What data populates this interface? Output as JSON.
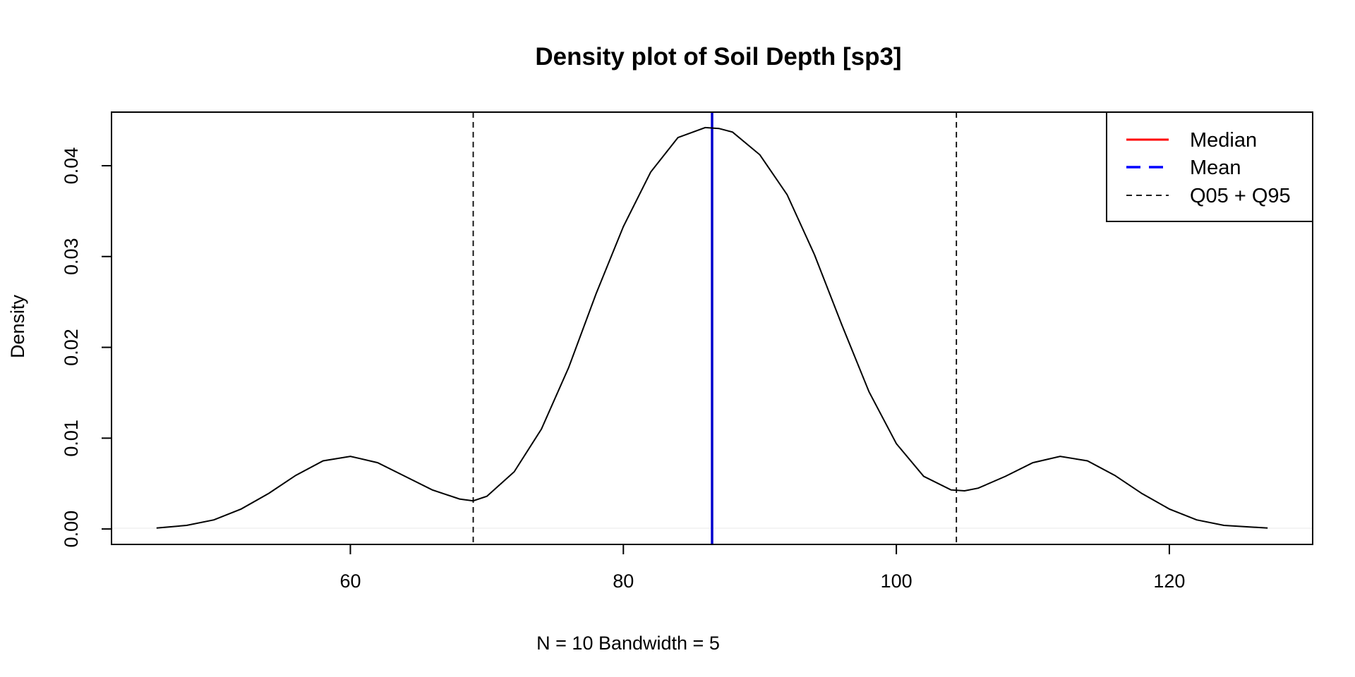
{
  "chart_data": {
    "type": "line",
    "title": "Density plot of Soil Depth [sp3]",
    "xlabel": "N = 10   Bandwidth = 5",
    "ylabel": "Density",
    "xlim": [
      42.5,
      130.5
    ],
    "ylim": [
      -0.0017,
      0.0459
    ],
    "x_ticks": [
      60,
      80,
      100,
      120
    ],
    "x_tick_labels": [
      "60",
      "80",
      "100",
      "120"
    ],
    "y_ticks": [
      0.0,
      0.01,
      0.02,
      0.03,
      0.04
    ],
    "y_tick_labels": [
      "0.00",
      "0.01",
      "0.02",
      "0.03",
      "0.04"
    ],
    "grid": false,
    "series": [
      {
        "x": [
          45.8,
          48,
          50,
          52,
          54,
          56,
          58,
          60,
          62,
          64,
          66,
          68,
          69,
          70,
          72,
          74,
          76,
          78,
          80,
          82,
          84,
          86,
          87,
          88,
          90,
          92,
          94,
          96,
          98,
          100,
          102,
          104,
          105,
          106,
          108,
          110,
          112,
          114,
          116,
          118,
          120,
          122,
          124,
          127.2
        ],
        "y": [
          0.0001,
          0.0004,
          0.001,
          0.0022,
          0.0039,
          0.0059,
          0.0075,
          0.008,
          0.0073,
          0.0058,
          0.0043,
          0.0033,
          0.0031,
          0.0036,
          0.0063,
          0.011,
          0.0178,
          0.0259,
          0.0333,
          0.0393,
          0.0431,
          0.0442,
          0.0441,
          0.0437,
          0.0412,
          0.0368,
          0.0302,
          0.0225,
          0.0151,
          0.0094,
          0.0058,
          0.0043,
          0.0042,
          0.0045,
          0.0058,
          0.0073,
          0.008,
          0.0075,
          0.0059,
          0.0039,
          0.0022,
          0.001,
          0.0004,
          0.0001
        ],
        "color": "#000000"
      }
    ],
    "reference_lines": [
      {
        "x": 86.5,
        "color": "#0000cd",
        "style": "solid"
      },
      {
        "x": 69.0,
        "color": "#000000",
        "style": "dashed"
      },
      {
        "x": 104.4,
        "color": "#000000",
        "style": "dashed"
      }
    ],
    "legend": {
      "position": "top-right",
      "entries": [
        {
          "name": "Median",
          "color": "#ff0000",
          "style": "solid"
        },
        {
          "name": "Mean",
          "color": "#0000ff",
          "style": "dashed"
        },
        {
          "name": "Q05 + Q95",
          "color": "#000000",
          "style": "dashed"
        }
      ]
    }
  }
}
